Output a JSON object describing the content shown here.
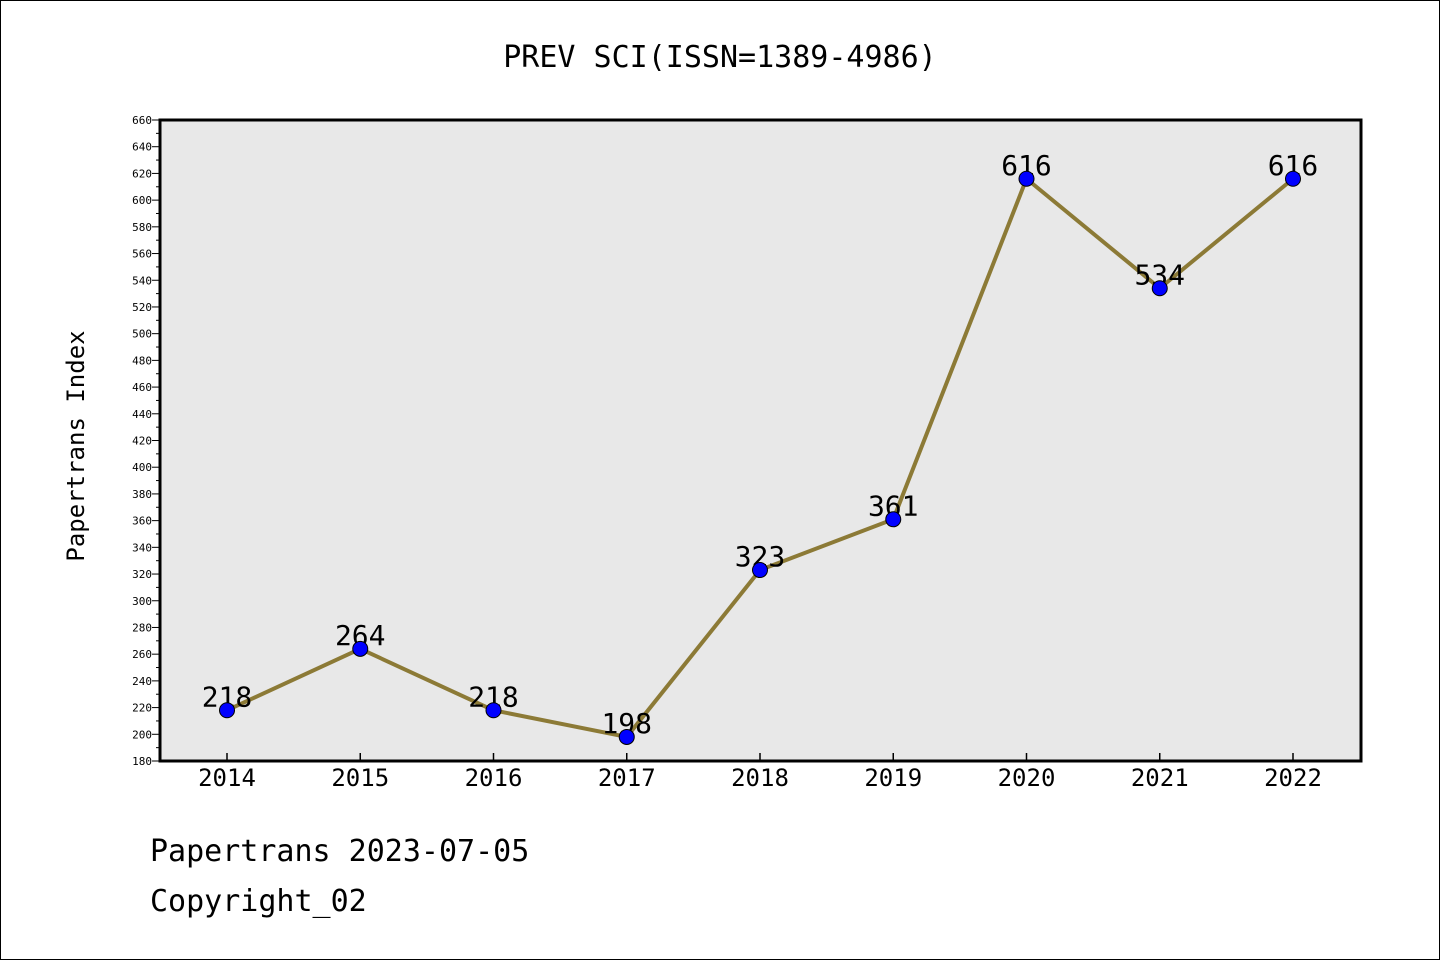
{
  "chart_data": {
    "type": "line",
    "title": "PREV SCI(ISSN=1389-4986)",
    "xlabel": "",
    "ylabel": "Papertrans Index",
    "categories": [
      "2014",
      "2015",
      "2016",
      "2017",
      "2018",
      "2019",
      "2020",
      "2021",
      "2022"
    ],
    "series": [
      {
        "values": [
          218,
          264,
          218,
          198,
          323,
          361,
          616,
          534,
          616
        ]
      }
    ],
    "data_labels": [
      "218",
      "264",
      "218",
      "198",
      "323",
      "361",
      "616",
      "534",
      "616"
    ],
    "ylim": [
      180,
      660
    ],
    "ytick_step": 20,
    "grid": false,
    "legend": "none",
    "colors": {
      "line": "#8c7a36",
      "marker": "#0000ff",
      "plot_background": "#e8e8e8"
    }
  },
  "footer": {
    "date_line": "Papertrans 2023-07-05",
    "copyright_line": "Copyright_02"
  }
}
